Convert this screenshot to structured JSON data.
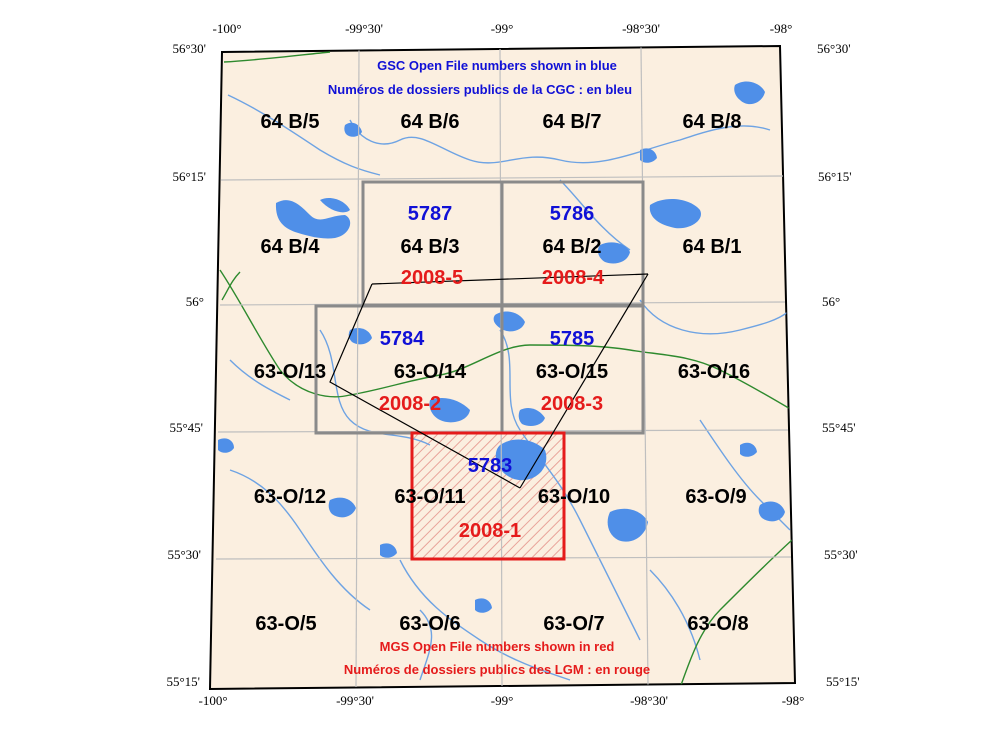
{
  "colors": {
    "land": "#fbefe0",
    "water": "#4f8fe8",
    "river": "#6ea3e3",
    "contour": "#2e8a2e",
    "grid": "#bfbfbf",
    "gsc_box": "#8a8a8a",
    "mgs_box": "#e51b1b",
    "gsc_text": "#1010d6",
    "mgs_text": "#e51b1b",
    "note_gsc": "#1010d6",
    "note_mgs": "#e51b1b"
  },
  "notes": {
    "gsc_line1": "GSC Open File numbers shown in blue",
    "gsc_line2": "Numéros de dossiers publics de la CGC : en bleu",
    "mgs_line1": "MGS Open File numbers shown in red",
    "mgs_line2": "Numéros de dossiers publics des LGM : en rouge"
  },
  "axis": {
    "top_lon": [
      "-100°",
      "-99°30'",
      "-99°",
      "-98°30'",
      "-98°"
    ],
    "bottom_lon": [
      "-100°",
      "-99°30'",
      "-99°",
      "-98°30'",
      "-98°"
    ],
    "left_lat": [
      "56°30'",
      "56°15'",
      "56°",
      "55°45'",
      "55°30'",
      "55°15'"
    ],
    "right_lat": [
      "56°30'",
      "56°15'",
      "56°",
      "55°45'",
      "55°30'",
      "55°15'"
    ]
  },
  "sheets": [
    [
      "64 B/5",
      "64 B/6",
      "64 B/7",
      "64 B/8"
    ],
    [
      "64 B/4",
      "64 B/3",
      "64 B/2",
      "64 B/1"
    ],
    [
      "63-O/13",
      "63-O/14",
      "63-O/15",
      "63-O/16"
    ],
    [
      "63-O/12",
      "63-O/11",
      "63-O/10",
      "63-O/9"
    ],
    [
      "63-O/5",
      "63-O/6",
      "63-O/7",
      "63-O/8"
    ]
  ],
  "gsc_open_files": [
    "5787",
    "5786",
    "5784",
    "5785",
    "5783"
  ],
  "mgs_open_files": [
    "2008-5",
    "2008-4",
    "2008-2",
    "2008-3",
    "2008-1"
  ]
}
